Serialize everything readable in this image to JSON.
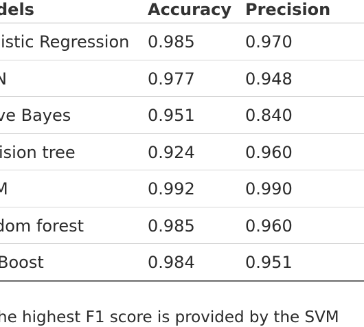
{
  "table": {
    "headers": [
      "dels",
      "Accuracy",
      "Precision"
    ],
    "rows": [
      {
        "model": "istic Regression",
        "accuracy": "0.985",
        "precision": "0.970"
      },
      {
        "model": "N",
        "accuracy": "0.977",
        "precision": "0.948"
      },
      {
        "model": "ve Bayes",
        "accuracy": "0.951",
        "precision": "0.840"
      },
      {
        "model": "ision tree",
        "accuracy": "0.924",
        "precision": "0.960"
      },
      {
        "model": "M",
        "accuracy": "0.992",
        "precision": "0.990"
      },
      {
        "model": "dom forest",
        "accuracy": "0.985",
        "precision": "0.960"
      },
      {
        "model": "Boost",
        "accuracy": "0.984",
        "precision": "0.951"
      }
    ]
  },
  "caption": "he highest F1 score is provided by the SVM"
}
